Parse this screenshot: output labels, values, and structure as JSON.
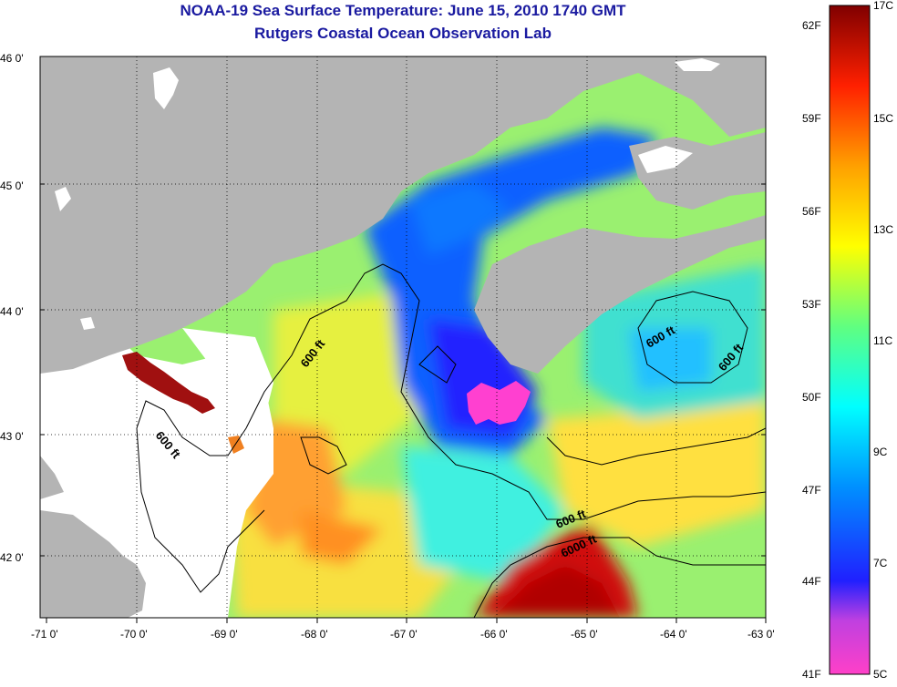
{
  "title": "NOAA-19 Sea Surface Temperature:  June 15, 2010 1740 GMT",
  "subtitle": "Rutgers Coastal Ocean Observation Lab",
  "lat_ticks": [
    "46 0'",
    "45 0'",
    "44 0'",
    "43 0'",
    "42 0'"
  ],
  "lon_ticks": [
    "-71 0'",
    "-70 0'",
    "-69 0'",
    "-68 0'",
    "-67 0'",
    "-66 0'",
    "-65 0'",
    "-64 0'",
    "-63 0'"
  ],
  "colorbar": {
    "f_labels": [
      "62F",
      "59F",
      "56F",
      "53F",
      "50F",
      "47F",
      "44F",
      "41F"
    ],
    "c_labels": [
      "17C",
      "15C",
      "13C",
      "11C",
      "9C",
      "7C",
      "5C"
    ],
    "colors": [
      "#ff40c8",
      "#6030e0",
      "#0000ff",
      "#0090ff",
      "#00ffff",
      "#60ff80",
      "#ffff00",
      "#ffa000",
      "#ff2000",
      "#800000"
    ]
  },
  "contour_labels": [
    "600 ft",
    "600 ft",
    "600 ft",
    "600 ft",
    "600 ft",
    "6000 ft"
  ],
  "colors": {
    "land": "#b4b4b4",
    "nodata": "#ffffff",
    "title": "#1a1aa0"
  }
}
